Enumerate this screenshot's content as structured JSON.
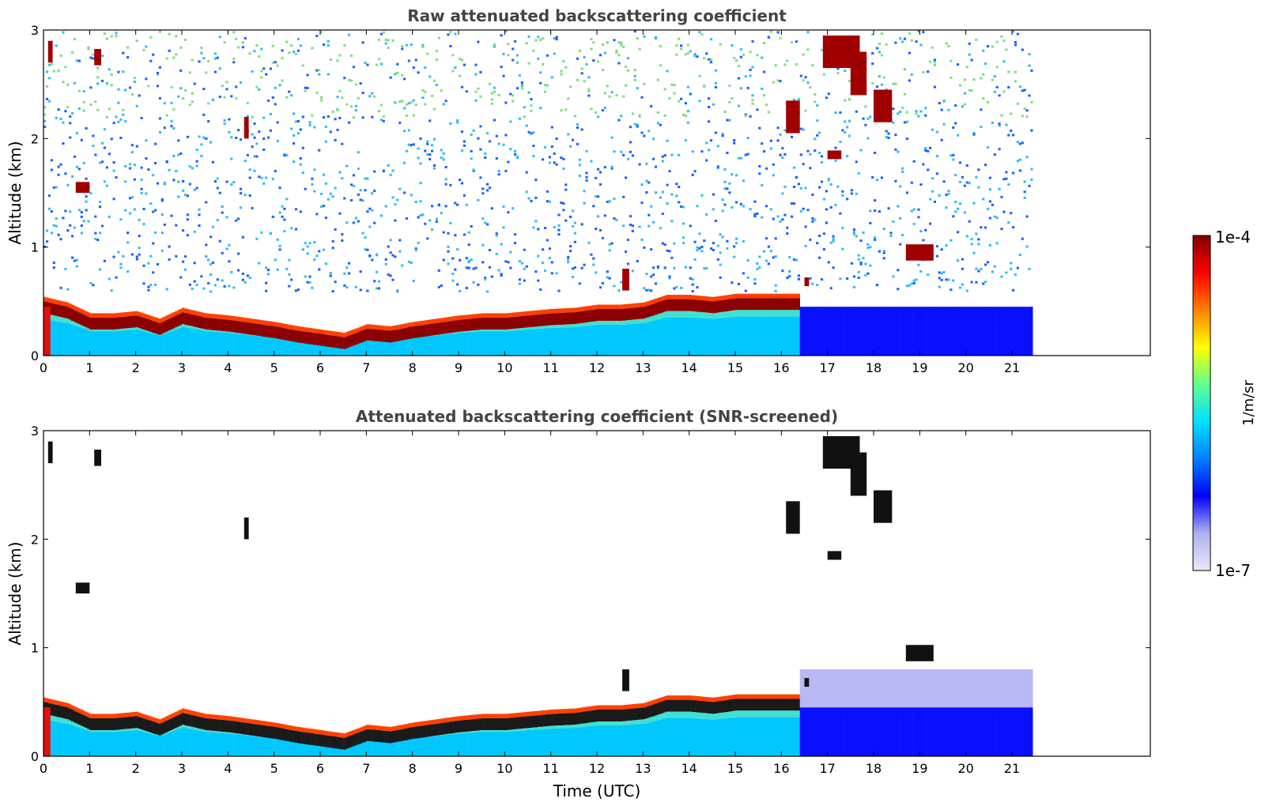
{
  "chart_data": [
    {
      "type": "heatmap",
      "title": "Raw attenuated backscattering coefficient",
      "ylabel": "Altitude (km)",
      "xlabel": "",
      "xlim": [
        0,
        24
      ],
      "ylim": [
        0,
        3
      ],
      "xticks": [
        0,
        1,
        2,
        3,
        4,
        5,
        6,
        7,
        8,
        9,
        10,
        11,
        12,
        13,
        14,
        15,
        16,
        17,
        18,
        19,
        20,
        21
      ],
      "yticks": [
        0,
        1,
        2,
        3
      ],
      "data_end_time": 21.45,
      "boundary_layer_top_km": [
        [
          0,
          0.45
        ],
        [
          0.5,
          0.4
        ],
        [
          1,
          0.3
        ],
        [
          1.5,
          0.3
        ],
        [
          2,
          0.32
        ],
        [
          2.5,
          0.25
        ],
        [
          3,
          0.35
        ],
        [
          3.5,
          0.3
        ],
        [
          4,
          0.28
        ],
        [
          4.5,
          0.25
        ],
        [
          5,
          0.22
        ],
        [
          5.5,
          0.18
        ],
        [
          6,
          0.15
        ],
        [
          6.5,
          0.12
        ],
        [
          7,
          0.2
        ],
        [
          7.5,
          0.18
        ],
        [
          8,
          0.22
        ],
        [
          8.5,
          0.25
        ],
        [
          9,
          0.28
        ],
        [
          9.5,
          0.3
        ],
        [
          10,
          0.3
        ],
        [
          10.5,
          0.32
        ],
        [
          11,
          0.34
        ],
        [
          11.5,
          0.35
        ],
        [
          12,
          0.38
        ],
        [
          12.5,
          0.38
        ],
        [
          13,
          0.4
        ],
        [
          13.5,
          0.47
        ],
        [
          14,
          0.47
        ],
        [
          14.5,
          0.45
        ],
        [
          15,
          0.48
        ],
        [
          15.5,
          0.48
        ]
      ],
      "cloud_patches": [
        {
          "t": 0.1,
          "z": 2.8,
          "w": 0.1,
          "h": 0.2
        },
        {
          "t": 1.1,
          "z": 2.75,
          "w": 0.15,
          "h": 0.15
        },
        {
          "t": 0.7,
          "z": 1.55,
          "w": 0.3,
          "h": 0.1
        },
        {
          "t": 4.35,
          "z": 2.1,
          "w": 0.1,
          "h": 0.2
        },
        {
          "t": 16.1,
          "z": 2.2,
          "w": 0.3,
          "h": 0.3
        },
        {
          "t": 16.9,
          "z": 2.8,
          "w": 0.8,
          "h": 0.3
        },
        {
          "t": 17.0,
          "z": 1.85,
          "w": 0.3,
          "h": 0.08
        },
        {
          "t": 17.5,
          "z": 2.6,
          "w": 0.35,
          "h": 0.4
        },
        {
          "t": 18.0,
          "z": 2.3,
          "w": 0.4,
          "h": 0.3
        },
        {
          "t": 18.7,
          "z": 0.95,
          "w": 0.6,
          "h": 0.15
        },
        {
          "t": 16.5,
          "z": 0.68,
          "w": 0.1,
          "h": 0.08
        },
        {
          "t": 12.55,
          "z": 0.7,
          "w": 0.15,
          "h": 0.2
        }
      ]
    },
    {
      "type": "heatmap",
      "title": "Attenuated backscattering coefficient (SNR-screened)",
      "ylabel": "Altitude (km)",
      "xlabel": "Time (UTC)",
      "xlim": [
        0,
        24
      ],
      "ylim": [
        0,
        3
      ],
      "xticks": [
        0,
        1,
        2,
        3,
        4,
        5,
        6,
        7,
        8,
        9,
        10,
        11,
        12,
        13,
        14,
        15,
        16,
        17,
        18,
        19,
        20,
        21
      ],
      "yticks": [
        0,
        1,
        2,
        3
      ],
      "data_end_time": 21.45
    }
  ],
  "colorbar": {
    "label": "1/m/sr",
    "max_label": "1e-4",
    "min_label": "1e-7",
    "colormap": "jet",
    "colors": [
      "#e8e8f8",
      "#b0b0f0",
      "#0000ff",
      "#0080ff",
      "#00e0ff",
      "#60ff90",
      "#ffff00",
      "#ff8000",
      "#ff0000",
      "#800000"
    ]
  }
}
